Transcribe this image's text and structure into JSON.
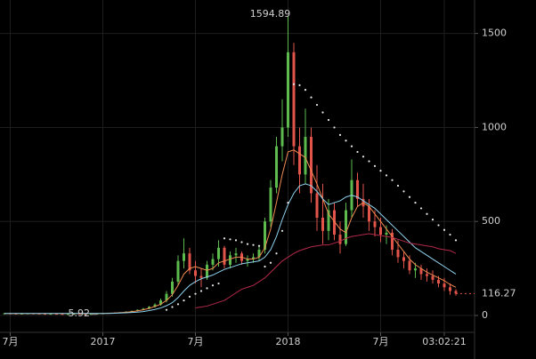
{
  "chart_data": {
    "type": "candlestick",
    "categories": [
      null,
      "7月",
      null,
      null,
      null,
      null,
      null,
      null,
      null,
      null,
      null,
      null,
      null,
      null,
      null,
      null,
      null,
      "2017",
      null,
      null,
      null,
      null,
      null,
      null,
      null,
      null,
      null,
      null,
      null,
      null,
      null,
      null,
      null,
      "7月",
      null,
      null,
      null,
      null,
      null,
      null,
      null,
      null,
      null,
      null,
      null,
      null,
      null,
      null,
      null,
      "2018",
      null,
      null,
      null,
      null,
      null,
      null,
      null,
      null,
      null,
      null,
      null,
      null,
      null,
      null,
      null,
      "7月",
      null,
      null,
      null,
      null,
      null,
      null,
      null,
      null,
      null,
      null,
      "03:02:21",
      null,
      null
    ],
    "ohlc": [
      [
        10,
        14,
        8,
        11
      ],
      [
        11,
        13,
        9,
        10
      ],
      [
        10,
        12,
        8,
        9
      ],
      [
        9,
        11,
        7,
        10
      ],
      [
        10,
        12,
        8,
        11
      ],
      [
        11,
        13,
        9,
        10
      ],
      [
        10,
        12,
        8,
        9
      ],
      [
        9,
        11,
        7,
        8
      ],
      [
        8,
        10,
        6,
        9
      ],
      [
        9,
        11,
        7,
        8
      ],
      [
        8,
        10,
        6,
        7
      ],
      [
        7,
        9,
        6,
        8
      ],
      [
        8,
        10,
        6,
        9
      ],
      [
        9,
        11,
        7,
        8
      ],
      [
        8,
        10,
        6,
        7
      ],
      [
        7,
        9,
        6,
        8
      ],
      [
        8,
        11,
        5.92,
        10
      ],
      [
        10,
        13,
        9,
        12
      ],
      [
        12,
        15,
        11,
        14
      ],
      [
        14,
        16,
        12,
        13
      ],
      [
        13,
        18,
        12,
        17
      ],
      [
        17,
        22,
        15,
        20
      ],
      [
        20,
        26,
        18,
        24
      ],
      [
        24,
        32,
        22,
        30
      ],
      [
        30,
        40,
        27,
        36
      ],
      [
        36,
        50,
        33,
        46
      ],
      [
        46,
        65,
        42,
        58
      ],
      [
        58,
        90,
        52,
        80
      ],
      [
        80,
        130,
        70,
        115
      ],
      [
        115,
        200,
        100,
        180
      ],
      [
        180,
        320,
        160,
        290
      ],
      [
        290,
        410,
        250,
        330
      ],
      [
        330,
        360,
        220,
        240
      ],
      [
        240,
        290,
        170,
        210
      ],
      [
        210,
        250,
        150,
        200
      ],
      [
        200,
        290,
        190,
        270
      ],
      [
        270,
        330,
        240,
        300
      ],
      [
        300,
        400,
        260,
        360
      ],
      [
        360,
        370,
        250,
        270
      ],
      [
        270,
        340,
        250,
        320
      ],
      [
        320,
        360,
        280,
        330
      ],
      [
        330,
        340,
        270,
        290
      ],
      [
        290,
        320,
        260,
        300
      ],
      [
        300,
        330,
        280,
        310
      ],
      [
        310,
        370,
        290,
        350
      ],
      [
        350,
        520,
        330,
        500
      ],
      [
        500,
        720,
        470,
        680
      ],
      [
        680,
        950,
        650,
        900
      ],
      [
        900,
        1150,
        820,
        1000
      ],
      [
        1000,
        1594.89,
        950,
        1400
      ],
      [
        1400,
        1450,
        800,
        900
      ],
      [
        900,
        1000,
        650,
        750
      ],
      [
        750,
        1100,
        700,
        950
      ],
      [
        950,
        1000,
        600,
        650
      ],
      [
        650,
        800,
        450,
        520
      ],
      [
        520,
        700,
        380,
        450
      ],
      [
        450,
        620,
        400,
        560
      ],
      [
        560,
        600,
        400,
        430
      ],
      [
        430,
        500,
        330,
        380
      ],
      [
        380,
        600,
        370,
        560
      ],
      [
        560,
        830,
        520,
        720
      ],
      [
        720,
        760,
        580,
        620
      ],
      [
        620,
        700,
        520,
        580
      ],
      [
        580,
        620,
        450,
        500
      ],
      [
        500,
        560,
        420,
        470
      ],
      [
        470,
        520,
        390,
        430
      ],
      [
        430,
        480,
        380,
        440
      ],
      [
        440,
        460,
        320,
        350
      ],
      [
        350,
        400,
        280,
        310
      ],
      [
        310,
        340,
        250,
        290
      ],
      [
        290,
        320,
        220,
        240
      ],
      [
        240,
        280,
        200,
        250
      ],
      [
        250,
        270,
        190,
        220
      ],
      [
        220,
        250,
        180,
        210
      ],
      [
        210,
        240,
        170,
        190
      ],
      [
        190,
        210,
        150,
        170
      ],
      [
        170,
        200,
        130,
        150
      ],
      [
        150,
        170,
        110,
        130
      ],
      [
        130,
        140,
        105,
        116.27
      ]
    ],
    "up_color": "#5dbb4e",
    "down_color": "#e2534a",
    "series": [
      {
        "style": "line",
        "color": "#f08a52",
        "values": [
          10,
          10,
          10,
          10,
          10,
          10,
          10,
          10,
          10,
          10,
          10,
          10,
          10,
          10,
          10,
          10,
          10,
          11,
          12,
          13,
          15,
          17,
          20,
          25,
          30,
          38,
          48,
          60,
          80,
          110,
          160,
          220,
          250,
          260,
          250,
          240,
          250,
          280,
          290,
          300,
          310,
          310,
          300,
          300,
          310,
          360,
          460,
          600,
          750,
          870,
          880,
          860,
          840,
          770,
          700,
          620,
          540,
          500,
          460,
          440,
          520,
          580,
          600,
          580,
          540,
          500,
          460,
          420,
          380,
          340,
          300,
          270,
          250,
          230,
          215,
          200,
          185,
          165,
          150
        ]
      },
      {
        "style": "line",
        "color": "#8fd3ee",
        "values": [
          11,
          11,
          11,
          11,
          11,
          11,
          11,
          11,
          11,
          11,
          11,
          11,
          11,
          11,
          11,
          11,
          11,
          11,
          11,
          12,
          13,
          14,
          16,
          18,
          21,
          26,
          32,
          40,
          52,
          68,
          95,
          130,
          160,
          180,
          195,
          205,
          215,
          230,
          245,
          255,
          265,
          275,
          280,
          285,
          290,
          310,
          350,
          420,
          510,
          590,
          650,
          690,
          700,
          690,
          660,
          620,
          590,
          600,
          610,
          630,
          640,
          630,
          610,
          590,
          570,
          540,
          510,
          480,
          450,
          420,
          390,
          360,
          340,
          320,
          300,
          280,
          260,
          240,
          220
        ]
      },
      {
        "style": "line",
        "color": "#b3294a",
        "values": [
          null,
          null,
          null,
          null,
          null,
          null,
          null,
          null,
          null,
          null,
          null,
          null,
          null,
          null,
          null,
          null,
          null,
          null,
          null,
          null,
          null,
          null,
          null,
          null,
          null,
          null,
          null,
          null,
          null,
          null,
          null,
          null,
          null,
          40,
          45,
          50,
          60,
          70,
          80,
          100,
          120,
          140,
          150,
          160,
          180,
          200,
          230,
          260,
          290,
          310,
          330,
          345,
          355,
          365,
          370,
          375,
          375,
          385,
          395,
          410,
          420,
          425,
          430,
          435,
          430,
          425,
          420,
          415,
          405,
          395,
          385,
          380,
          375,
          370,
          365,
          355,
          350,
          345,
          330
        ]
      },
      {
        "style": "dots",
        "color": "#e8e8e8",
        "values": [
          null,
          null,
          null,
          null,
          null,
          null,
          null,
          null,
          null,
          null,
          null,
          null,
          null,
          null,
          null,
          null,
          null,
          null,
          null,
          null,
          null,
          null,
          null,
          null,
          null,
          null,
          null,
          null,
          30,
          45,
          60,
          80,
          100,
          115,
          130,
          145,
          160,
          170,
          410,
          405,
          400,
          390,
          380,
          375,
          370,
          260,
          280,
          330,
          450,
          600,
          1230,
          1225,
          1200,
          1160,
          1120,
          1080,
          1040,
          1000,
          960,
          930,
          900,
          870,
          845,
          820,
          795,
          770,
          745,
          720,
          690,
          660,
          630,
          600,
          570,
          540,
          510,
          480,
          455,
          430,
          400
        ]
      }
    ],
    "high_label": 1594.89,
    "low_label": 5.92,
    "last_price": 116.27,
    "last_price_color": "#e2534a",
    "ylim": [
      -85,
      1678
    ],
    "yticks": [
      0,
      500,
      1000,
      1500
    ],
    "grid": true
  }
}
